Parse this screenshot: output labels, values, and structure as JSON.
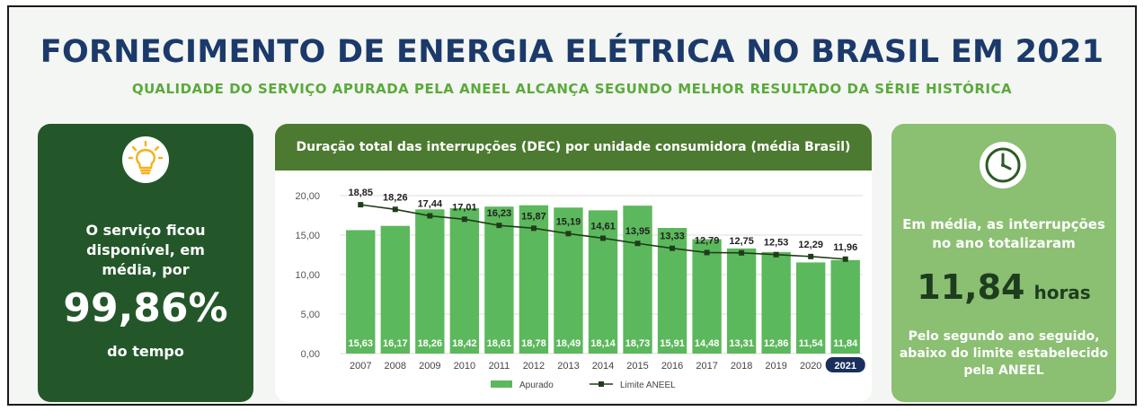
{
  "header": {
    "title": "FORNECIMENTO DE ENERGIA ELÉTRICA NO BRASIL EM 2021",
    "subtitle": "QUALIDADE DO SERVIÇO APURADA PELA ANEEL ALCANÇA SEGUNDO MELHOR RESULTADO DA SÉRIE HISTÓRICA"
  },
  "left_panel": {
    "icon": "lightbulb-icon",
    "text_lines": [
      "O serviço ficou",
      "disponível, em",
      "média, por"
    ],
    "value": "99,86%",
    "footer": "do tempo"
  },
  "right_panel": {
    "icon": "clock-icon",
    "text_lines": [
      "Em média, as interrupções",
      "no ano totalizaram"
    ],
    "value": "11,84",
    "unit": "horas",
    "footer_lines": [
      "Pelo segundo ano seguido,",
      "abaixo do limite estabelecido",
      "pela ANEEL"
    ]
  },
  "chart_data": {
    "type": "bar",
    "title": "Duração total das interrupções (DEC) por unidade consumidora (média Brasil)",
    "categories": [
      "2007",
      "2008",
      "2009",
      "2010",
      "2011",
      "2012",
      "2013",
      "2014",
      "2015",
      "2016",
      "2017",
      "2018",
      "2019",
      "2020",
      "2021"
    ],
    "series": [
      {
        "name": "Apurado",
        "type": "bar",
        "values": [
          15.63,
          16.17,
          18.26,
          18.42,
          18.61,
          18.78,
          18.49,
          18.14,
          18.73,
          15.91,
          14.48,
          13.31,
          12.86,
          11.54,
          11.84
        ],
        "labels": [
          "15,63",
          "16,17",
          "18,26",
          "18,42",
          "18,61",
          "18,78",
          "18,49",
          "18,14",
          "18,73",
          "15,91",
          "14,48",
          "13,31",
          "12,86",
          "11,54",
          "11,84"
        ]
      },
      {
        "name": "Limite ANEEL",
        "type": "line",
        "values": [
          18.85,
          18.26,
          17.44,
          17.01,
          16.23,
          15.87,
          15.19,
          14.61,
          13.95,
          13.33,
          12.79,
          12.75,
          12.53,
          12.29,
          11.96
        ],
        "labels": [
          "18,85",
          "18,26",
          "17,44",
          "17,01",
          "16,23",
          "15,87",
          "15,19",
          "14,61",
          "13,95",
          "13,33",
          "12,79",
          "12,75",
          "12,53",
          "12,29",
          "11,96"
        ]
      }
    ],
    "y_ticks": [
      "0,00",
      "5,00",
      "10,00",
      "15,00",
      "20,00"
    ],
    "y_tick_values": [
      0,
      5,
      10,
      15,
      20
    ],
    "ylim": [
      0,
      20
    ],
    "highlight_category": "2021",
    "legend_placement": "bottom",
    "grid": true,
    "colors": {
      "bar": "#5cb85c",
      "line": "#1f3d1a",
      "bar_label": "#ffffff",
      "highlight_badge": "#1b2f5e"
    }
  },
  "colors": {
    "title": "#1b3a6b",
    "subtitle": "#5aaa3c",
    "left_panel": "#23572a",
    "right_panel": "#8bbf72",
    "chart_header": "#4c7a31"
  }
}
